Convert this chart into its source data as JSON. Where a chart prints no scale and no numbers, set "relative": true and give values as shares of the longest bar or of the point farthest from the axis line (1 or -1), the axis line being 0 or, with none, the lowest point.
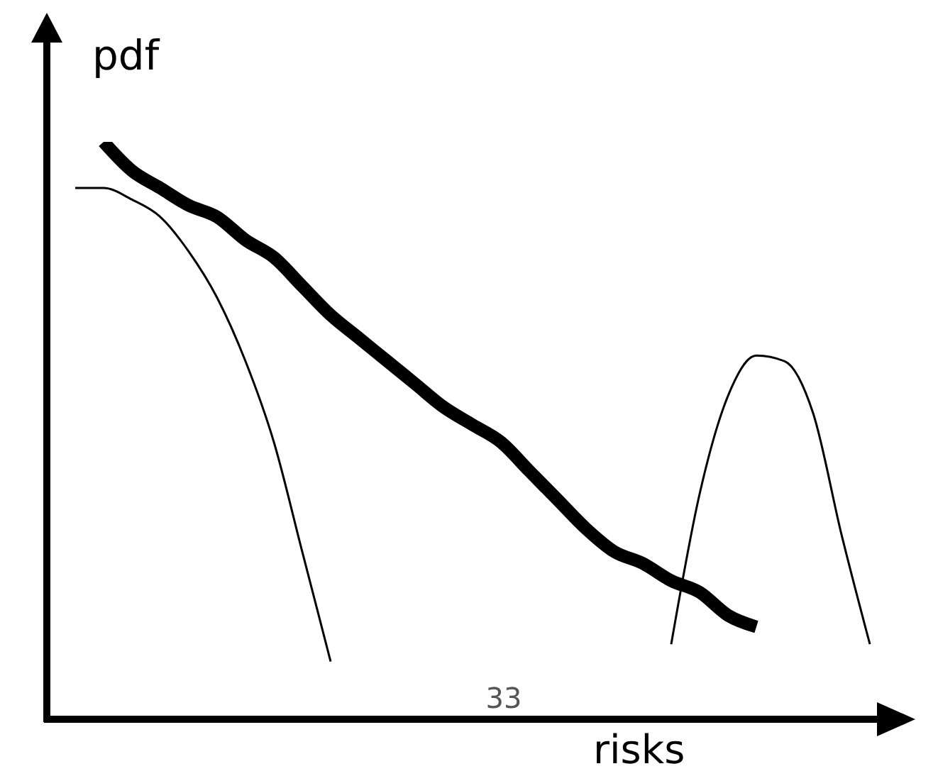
{
  "chart_data": {
    "type": "line",
    "relative": true,
    "xlabel": "risks",
    "ylabel": "pdf",
    "annotations": [
      "33"
    ],
    "categories": [
      null,
      null,
      null,
      null,
      null,
      null,
      null,
      null,
      null,
      null,
      null,
      null,
      null,
      null,
      null,
      null,
      null,
      null,
      null,
      null,
      null,
      null,
      null,
      null,
      null,
      null,
      null,
      null,
      null,
      null,
      null
    ],
    "series": [
      {
        "color": "#000000",
        "values": [
          null,
          null,
          1.0,
          0.95,
          0.92,
          0.89,
          0.87,
          0.83,
          0.8,
          0.75,
          0.7,
          0.66,
          0.62,
          0.58,
          0.54,
          0.51,
          0.48,
          0.43,
          0.38,
          0.33,
          0.29,
          0.27,
          0.24,
          0.22,
          0.18,
          0.16,
          null,
          null,
          null,
          null,
          null
        ]
      },
      {
        "color": "#000000",
        "values": [
          null,
          0.92,
          0.92,
          0.9,
          0.87,
          0.81,
          0.73,
          0.62,
          0.48,
          0.29,
          0.1,
          null,
          null,
          null,
          null,
          null,
          null,
          null,
          null,
          null,
          null,
          null,
          null,
          null,
          null,
          null,
          null,
          null,
          null,
          null,
          null
        ]
      },
      {
        "color": "#000000",
        "values": [
          null,
          null,
          null,
          null,
          null,
          null,
          null,
          null,
          null,
          null,
          null,
          null,
          null,
          null,
          null,
          null,
          null,
          null,
          null,
          null,
          null,
          null,
          0.13,
          0.39,
          0.56,
          0.63,
          0.62,
          0.53,
          0.32,
          0.13,
          null
        ]
      }
    ]
  }
}
